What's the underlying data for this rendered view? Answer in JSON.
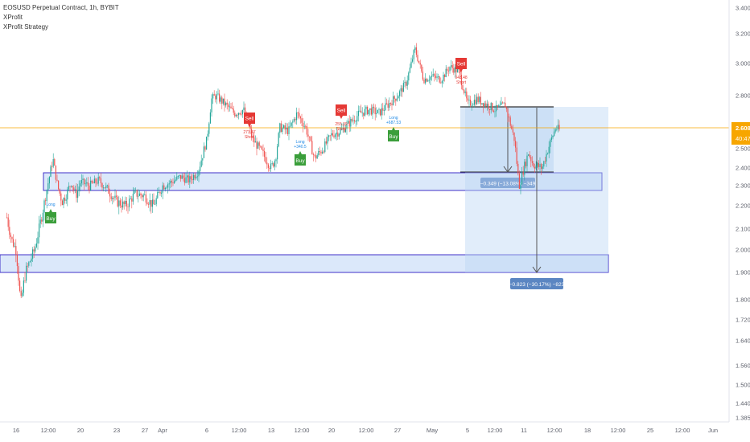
{
  "header": {
    "symbol_line": "EOSUSD Perpetual Contract, 1h, BYBIT",
    "indicator_1": "XProfit",
    "indicator_2": "XProfit Strategy"
  },
  "colors": {
    "up": "#26a69a",
    "down": "#ef5350",
    "price_line": "#f7a600",
    "zone_fill": "#cfe0f8",
    "zone_border": "#3f2fc8",
    "measure_fill": "#bcd6f3",
    "measure_label": "#5b86c2",
    "buy": "#3a9e3a",
    "sell": "#e53935",
    "long": "#1e88e5"
  },
  "price_axis": {
    "labels": [
      "3.400",
      "3.200",
      "3.000",
      "2.800",
      "2.500",
      "2.400",
      "2.300",
      "2.200",
      "2.100",
      "2.000",
      "1.900",
      "1.800",
      "1.720",
      "1.640",
      "1.560",
      "1.500",
      "1.440",
      "1.385"
    ]
  },
  "current_price": {
    "value": 2.608,
    "label": "2.608",
    "countdown": "40:47"
  },
  "time_axis": {
    "labels": [
      "16",
      "12:00",
      "20",
      "23",
      "27",
      "Apr",
      "6",
      "12:00",
      "13",
      "12:00",
      "20",
      "12:00",
      "27",
      "May",
      "5",
      "12:00",
      "11",
      "12:00",
      "18",
      "12:00",
      "25",
      "12:00",
      "Jun"
    ]
  },
  "zones": [
    {
      "name": "upper-zone",
      "top": 2.36,
      "bottom": 2.27
    },
    {
      "name": "lower-zone",
      "top": 1.99,
      "bottom": 1.91
    }
  ],
  "measurements": [
    {
      "name": "measure-short",
      "label": "−0.349 (−13.08%) −349"
    },
    {
      "name": "measure-long",
      "label": "−0.823 (−30.17%) −823"
    }
  ],
  "signals": {
    "buy_label": "Buy",
    "sell_label": "Sell",
    "long_label": "Long",
    "short_label": "Short",
    "long_values": [
      "",
      "+340.5",
      "+687.53"
    ],
    "sell_values": [
      "273.47",
      "255.39",
      "943.48"
    ]
  },
  "chart_data": {
    "type": "candlestick",
    "title": "EOSUSD Perpetual Contract, 1h, BYBIT",
    "price_range": [
      1.385,
      3.4
    ],
    "price_scale": "non-linear (as printed on the price axis)",
    "grid": false,
    "series": [
      {
        "name": "EOSUSD",
        "path_points": [
          [
            "Mar 15",
            2.15
          ],
          [
            "Mar 15 12:00",
            2.05
          ],
          [
            "Mar 16",
            2.0
          ],
          [
            "Mar 16 12:00",
            1.78
          ],
          [
            "Mar 17",
            1.9
          ],
          [
            "Mar 17 12:00",
            1.95
          ],
          [
            "Mar 18",
            2.0
          ],
          [
            "Mar 18 12:00",
            2.1
          ],
          [
            "Mar 19",
            2.2
          ],
          [
            "Mar 19 12:00",
            2.32
          ],
          [
            "Mar 20",
            2.45
          ],
          [
            "Mar 20 12:00",
            2.3
          ],
          [
            "Mar 21",
            2.22
          ],
          [
            "Mar 21 12:00",
            2.26
          ],
          [
            "Mar 22",
            2.32
          ],
          [
            "Mar 22 12:00",
            2.25
          ],
          [
            "Mar 23",
            2.32
          ],
          [
            "Mar 24",
            2.3
          ],
          [
            "Mar 25",
            2.33
          ],
          [
            "Mar 26",
            2.28
          ],
          [
            "Mar 27",
            2.22
          ],
          [
            "Mar 28",
            2.2
          ],
          [
            "Mar 29",
            2.26
          ],
          [
            "Mar 30",
            2.25
          ],
          [
            "Mar 31",
            2.2
          ],
          [
            "Apr 1",
            2.3
          ],
          [
            "Apr 2",
            2.32
          ],
          [
            "Apr 3",
            2.35
          ],
          [
            "Apr 4",
            2.33
          ],
          [
            "Apr 5",
            2.38
          ],
          [
            "Apr 6",
            2.55
          ],
          [
            "Apr 6 12:00",
            2.78
          ],
          [
            "Apr 7",
            2.8
          ],
          [
            "Apr 8",
            2.75
          ],
          [
            "Apr 9",
            2.7
          ],
          [
            "Apr 10",
            2.72
          ],
          [
            "Apr 11",
            2.55
          ],
          [
            "Apr 12",
            2.48
          ],
          [
            "Apr 13",
            2.4
          ],
          [
            "Apr 13 12:00",
            2.45
          ],
          [
            "Apr 14",
            2.62
          ],
          [
            "Apr 15",
            2.6
          ],
          [
            "Apr 16",
            2.7
          ],
          [
            "Apr 17",
            2.62
          ],
          [
            "Apr 18",
            2.45
          ],
          [
            "Apr 19",
            2.5
          ],
          [
            "Apr 20",
            2.58
          ],
          [
            "Apr 21",
            2.6
          ],
          [
            "Apr 22",
            2.65
          ],
          [
            "Apr 23",
            2.7
          ],
          [
            "Apr 24",
            2.72
          ],
          [
            "Apr 25",
            2.7
          ],
          [
            "Apr 26",
            2.75
          ],
          [
            "Apr 27",
            2.8
          ],
          [
            "Apr 28",
            2.88
          ],
          [
            "Apr 28 12:00",
            2.98
          ],
          [
            "Apr 29",
            3.1
          ],
          [
            "Apr 30",
            2.9
          ],
          [
            "May 1",
            2.92
          ],
          [
            "May 2",
            2.9
          ],
          [
            "May 3",
            2.98
          ],
          [
            "May 4",
            2.95
          ],
          [
            "May 5",
            2.75
          ],
          [
            "May 6",
            2.78
          ],
          [
            "May 7",
            2.75
          ],
          [
            "May 8",
            2.72
          ],
          [
            "May 9",
            2.75
          ],
          [
            "May 10",
            2.55
          ],
          [
            "May 10 12:00",
            2.3
          ],
          [
            "May 11",
            2.4
          ],
          [
            "May 11 12:00",
            2.48
          ],
          [
            "May 12",
            2.42
          ],
          [
            "May 13",
            2.4
          ],
          [
            "May 14",
            2.55
          ],
          [
            "May 14 12:00",
            2.62
          ],
          [
            "May 15",
            2.6
          ]
        ]
      }
    ],
    "annotations": {
      "supply_demand_zones": [
        [
          2.36,
          2.27
        ],
        [
          1.99,
          1.91
        ]
      ],
      "measured_moves": [
        {
          "from": 2.74,
          "to": 2.39,
          "label": "−0.349 (−13.08%) −349"
        },
        {
          "from": 2.74,
          "to": 1.91,
          "label": "−0.823 (−30.17%) −823"
        }
      ]
    }
  }
}
